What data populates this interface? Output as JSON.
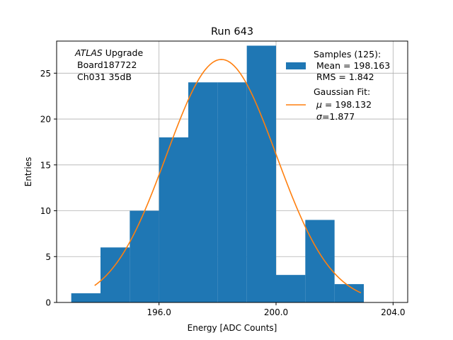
{
  "chart_data": {
    "type": "bar",
    "title": "Run 643",
    "xlabel": "Energy [ADC Counts]",
    "ylabel": "Entries",
    "xlim": [
      192.5,
      204.5
    ],
    "ylim": [
      0,
      28.5
    ],
    "grid": true,
    "x_ticks": [
      196,
      200,
      204
    ],
    "x_tick_labels": [
      "196.0",
      "200.0",
      "204.0"
    ],
    "y_ticks": [
      0,
      5,
      10,
      15,
      20,
      25
    ],
    "y_tick_labels": [
      "0",
      "5",
      "10",
      "15",
      "20",
      "25"
    ],
    "bins": [
      {
        "x0": 193.0,
        "x1": 194.0,
        "count": 1
      },
      {
        "x0": 194.0,
        "x1": 195.0,
        "count": 6
      },
      {
        "x0": 195.0,
        "x1": 196.0,
        "count": 10
      },
      {
        "x0": 196.0,
        "x1": 197.0,
        "count": 18
      },
      {
        "x0": 197.0,
        "x1": 198.0,
        "count": 24
      },
      {
        "x0": 198.0,
        "x1": 199.0,
        "count": 24
      },
      {
        "x0": 199.0,
        "x1": 200.0,
        "count": 28
      },
      {
        "x0": 200.0,
        "x1": 201.0,
        "count": 3
      },
      {
        "x0": 201.0,
        "x1": 202.0,
        "count": 9
      },
      {
        "x0": 202.0,
        "x1": 203.0,
        "count": 2
      }
    ],
    "fit": {
      "name": "Gaussian Fit",
      "mu": 198.132,
      "sigma": 1.877,
      "amplitude": 26.5,
      "x_range": [
        193.8,
        202.9
      ]
    },
    "annotation": {
      "experiment": "ATLAS",
      "line1_rest": " Upgrade",
      "line2": "Board187722",
      "line3": "Ch031 35dB"
    },
    "legend": {
      "position": "top-right",
      "samples_title": "Samples (125):",
      "samples_mean": "Mean = 198.163",
      "samples_rms": "RMS = 1.842",
      "fit_title": "Gaussian Fit:",
      "fit_mu_symbol": "μ",
      "fit_mu_value": " = 198.132",
      "fit_sigma_symbol": "σ",
      "fit_sigma_value": "=1.877"
    },
    "colors": {
      "bar": "#1f77b4",
      "fit": "#ff7f0e",
      "grid": "#b0b0b0",
      "axis": "#000000"
    }
  }
}
